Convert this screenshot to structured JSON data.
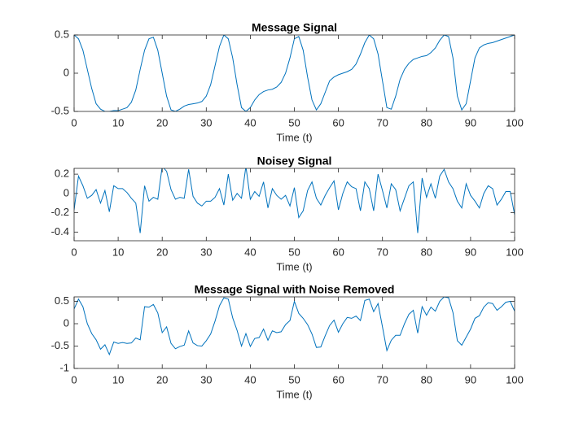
{
  "chart_data": [
    {
      "type": "line",
      "title": "Message Signal",
      "xlabel": "Time (t)",
      "x": [
        0,
        1,
        2,
        3,
        4,
        5,
        6,
        7,
        8,
        9,
        10,
        11,
        12,
        13,
        14,
        15,
        16,
        17,
        18,
        19,
        20,
        21,
        22,
        23,
        24,
        25,
        26,
        27,
        28,
        29,
        30,
        31,
        32,
        33,
        34,
        35,
        36,
        37,
        38,
        39,
        40,
        41,
        42,
        43,
        44,
        45,
        46,
        47,
        48,
        49,
        50,
        51,
        52,
        53,
        54,
        55,
        56,
        57,
        58,
        59,
        60,
        61,
        62,
        63,
        64,
        65,
        66,
        67,
        68,
        69,
        70,
        71,
        72,
        73,
        74,
        75,
        76,
        77,
        78,
        79,
        80,
        81,
        82,
        83,
        84,
        85,
        86,
        87,
        88,
        89,
        90,
        91,
        92,
        93,
        94,
        95,
        96,
        97,
        98,
        99,
        100
      ],
      "series": [
        {
          "color": "#0072bd",
          "values": [
            0.5,
            0.45,
            0.3,
            0.05,
            -0.2,
            -0.4,
            -0.47,
            -0.5,
            -0.5,
            -0.49,
            -0.49,
            -0.47,
            -0.45,
            -0.38,
            -0.22,
            0.05,
            0.3,
            0.45,
            0.47,
            0.3,
            0,
            -0.3,
            -0.48,
            -0.5,
            -0.47,
            -0.43,
            -0.41,
            -0.4,
            -0.39,
            -0.37,
            -0.3,
            -0.15,
            0.1,
            0.35,
            0.5,
            0.45,
            0.2,
            -0.15,
            -0.45,
            -0.5,
            -0.45,
            -0.35,
            -0.28,
            -0.24,
            -0.22,
            -0.21,
            -0.18,
            -0.12,
            0,
            0.2,
            0.45,
            0.48,
            0.3,
            -0.05,
            -0.35,
            -0.48,
            -0.4,
            -0.25,
            -0.1,
            -0.05,
            -0.02,
            0,
            0.02,
            0.05,
            0.12,
            0.25,
            0.4,
            0.5,
            0.45,
            0.25,
            -0.1,
            -0.45,
            -0.47,
            -0.3,
            -0.08,
            0.05,
            0.13,
            0.18,
            0.2,
            0.22,
            0.23,
            0.27,
            0.33,
            0.43,
            0.5,
            0.48,
            0.2,
            -0.3,
            -0.48,
            -0.4,
            -0.1,
            0.2,
            0.33,
            0.37,
            0.39,
            0.4,
            0.42,
            0.44,
            0.46,
            0.48,
            0.5
          ]
        }
      ],
      "xlim": [
        0,
        100
      ],
      "xticks": [
        0,
        10,
        20,
        30,
        40,
        50,
        60,
        70,
        80,
        90,
        100
      ],
      "ylim": [
        -0.5,
        0.5
      ],
      "yticks": [
        -0.5,
        0,
        0.5
      ]
    },
    {
      "type": "line",
      "title": "Noisey Signal",
      "xlabel": "Time (t)",
      "x": [
        0,
        1,
        2,
        3,
        4,
        5,
        6,
        7,
        8,
        9,
        10,
        11,
        12,
        13,
        14,
        15,
        16,
        17,
        18,
        19,
        20,
        21,
        22,
        23,
        24,
        25,
        26,
        27,
        28,
        29,
        30,
        31,
        32,
        33,
        34,
        35,
        36,
        37,
        38,
        39,
        40,
        41,
        42,
        43,
        44,
        45,
        46,
        47,
        48,
        49,
        50,
        51,
        52,
        53,
        54,
        55,
        56,
        57,
        58,
        59,
        60,
        61,
        62,
        63,
        64,
        65,
        66,
        67,
        68,
        69,
        70,
        71,
        72,
        73,
        74,
        75,
        76,
        77,
        78,
        79,
        80,
        81,
        82,
        83,
        84,
        85,
        86,
        87,
        88,
        89,
        90,
        91,
        92,
        93,
        94,
        95,
        96,
        97,
        98,
        99,
        100
      ],
      "series": [
        {
          "color": "#0072bd",
          "values": [
            -0.17,
            0.18,
            0.08,
            -0.05,
            -0.02,
            0.04,
            -0.1,
            0.03,
            -0.19,
            0.08,
            0.05,
            0.05,
            0.01,
            -0.05,
            -0.1,
            -0.41,
            0.08,
            -0.08,
            -0.04,
            -0.06,
            0.28,
            0.23,
            0.04,
            -0.06,
            -0.04,
            -0.05,
            0.25,
            -0.03,
            -0.1,
            -0.13,
            -0.08,
            -0.08,
            -0.04,
            0.05,
            -0.12,
            0.2,
            -0.07,
            0,
            -0.05,
            0.28,
            -0.06,
            0.02,
            -0.03,
            0.12,
            -0.15,
            0.05,
            -0.02,
            -0.06,
            -0.02,
            -0.13,
            0.06,
            -0.25,
            -0.18,
            0.03,
            0.12,
            -0.05,
            -0.12,
            -0.02,
            0.06,
            0.13,
            -0.17,
            0,
            0.12,
            0.07,
            0.05,
            -0.18,
            0.12,
            0.05,
            -0.18,
            0.2,
            0.03,
            -0.15,
            0.1,
            0.04,
            -0.18,
            -0.05,
            0.08,
            0.12,
            -0.41,
            0.16,
            -0.04,
            0.1,
            -0.05,
            0.18,
            0.25,
            0.12,
            0.05,
            -0.08,
            -0.15,
            0.1,
            -0.02,
            -0.08,
            -0.15,
            0,
            0.08,
            0.05,
            -0.12,
            -0.06,
            0.02,
            0.02,
            -0.22
          ]
        }
      ],
      "xlim": [
        0,
        100
      ],
      "xticks": [
        0,
        10,
        20,
        30,
        40,
        50,
        60,
        70,
        80,
        90,
        100
      ],
      "ylim": [
        -0.49,
        0.26
      ],
      "yticks": [
        -0.4,
        -0.2,
        0,
        0.2
      ]
    },
    {
      "type": "line",
      "title": "Message Signal with Noise Removed",
      "xlabel": "Time (t)",
      "x": [
        0,
        1,
        2,
        3,
        4,
        5,
        6,
        7,
        8,
        9,
        10,
        11,
        12,
        13,
        14,
        15,
        16,
        17,
        18,
        19,
        20,
        21,
        22,
        23,
        24,
        25,
        26,
        27,
        28,
        29,
        30,
        31,
        32,
        33,
        34,
        35,
        36,
        37,
        38,
        39,
        40,
        41,
        42,
        43,
        44,
        45,
        46,
        47,
        48,
        49,
        50,
        51,
        52,
        53,
        54,
        55,
        56,
        57,
        58,
        59,
        60,
        61,
        62,
        63,
        64,
        65,
        66,
        67,
        68,
        69,
        70,
        71,
        72,
        73,
        74,
        75,
        76,
        77,
        78,
        79,
        80,
        81,
        82,
        83,
        84,
        85,
        86,
        87,
        88,
        89,
        90,
        91,
        92,
        93,
        94,
        95,
        96,
        97,
        98,
        99,
        100
      ],
      "series": [
        {
          "color": "#0072bd",
          "values": [
            0.33,
            0.55,
            0.38,
            0,
            -0.22,
            -0.36,
            -0.57,
            -0.47,
            -0.69,
            -0.41,
            -0.44,
            -0.42,
            -0.44,
            -0.43,
            -0.32,
            -0.36,
            0.38,
            0.37,
            0.43,
            0.24,
            -0.2,
            -0.07,
            -0.44,
            -0.56,
            -0.51,
            -0.48,
            -0.16,
            -0.43,
            -0.49,
            -0.5,
            -0.38,
            -0.23,
            0.06,
            0.4,
            0.58,
            0.55,
            0.13,
            -0.15,
            -0.5,
            -0.22,
            -0.51,
            -0.33,
            -0.31,
            -0.12,
            -0.37,
            -0.16,
            -0.2,
            -0.18,
            -0.02,
            0.07,
            0.5,
            0.23,
            0.12,
            -0.02,
            -0.23,
            -0.53,
            -0.52,
            -0.27,
            -0.04,
            0.08,
            -0.19,
            0,
            0.14,
            0.12,
            0.17,
            0.07,
            0.52,
            0.55,
            0.27,
            0.45,
            -0.07,
            -0.6,
            -0.37,
            -0.26,
            -0.26,
            0,
            0.21,
            0.3,
            -0.21,
            0.38,
            0.19,
            0.37,
            0.28,
            0.5,
            0.6,
            0.58,
            0.25,
            -0.38,
            -0.48,
            -0.3,
            -0.12,
            0.12,
            0.18,
            0.37,
            0.47,
            0.45,
            0.3,
            0.38,
            0.48,
            0.5,
            0.28
          ]
        }
      ],
      "xlim": [
        0,
        100
      ],
      "xticks": [
        0,
        10,
        20,
        30,
        40,
        50,
        60,
        70,
        80,
        90,
        100
      ],
      "ylim": [
        -1,
        0.6
      ],
      "yticks": [
        -1,
        -0.5,
        0,
        0.5
      ]
    }
  ]
}
